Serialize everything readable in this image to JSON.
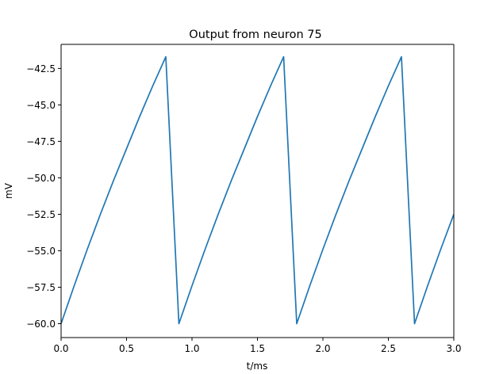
{
  "chart_data": {
    "type": "line",
    "title": "Output from neuron 75",
    "xlabel": "t/ms",
    "ylabel": "mV",
    "xlim": [
      0.0,
      3.0
    ],
    "ylim": [
      -60.95,
      -40.85
    ],
    "xticks": [
      0.0,
      0.5,
      1.0,
      1.5,
      2.0,
      2.5,
      3.0
    ],
    "xtick_labels": [
      "0.0",
      "0.5",
      "1.0",
      "1.5",
      "2.0",
      "2.5",
      "3.0"
    ],
    "yticks": [
      -60.0,
      -57.5,
      -55.0,
      -52.5,
      -50.0,
      -47.5,
      -45.0,
      -42.5
    ],
    "ytick_labels": [
      "−60.0",
      "−57.5",
      "−55.0",
      "−52.5",
      "−50.0",
      "−47.5",
      "−45.0",
      "−42.5"
    ],
    "grid": false,
    "series": [
      {
        "color": "#1f77b4",
        "x": [
          0.0,
          0.1,
          0.2,
          0.3,
          0.4,
          0.5,
          0.6,
          0.7,
          0.8,
          0.9,
          1.0,
          1.1,
          1.2,
          1.3,
          1.4,
          1.5,
          1.6,
          1.7,
          1.8,
          1.9,
          2.0,
          2.1,
          2.2,
          2.3,
          2.4,
          2.5,
          2.6,
          2.7,
          2.8,
          2.9,
          3.0
        ],
        "y": [
          -60.0,
          -57.4,
          -54.9,
          -52.5,
          -50.2,
          -48.0,
          -45.8,
          -43.7,
          -41.7,
          -60.0,
          -57.4,
          -54.9,
          -52.5,
          -50.2,
          -48.0,
          -45.8,
          -43.7,
          -41.7,
          -60.0,
          -57.4,
          -54.9,
          -52.5,
          -50.2,
          -48.0,
          -45.8,
          -43.7,
          -41.7,
          -60.0,
          -57.4,
          -54.9,
          -52.5
        ]
      }
    ]
  }
}
